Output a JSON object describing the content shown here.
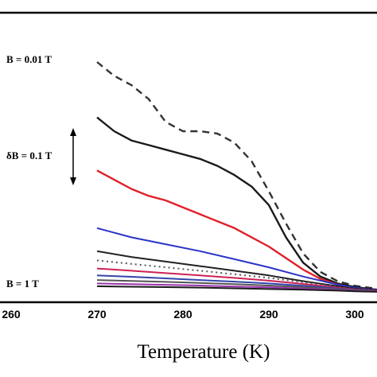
{
  "chart_data": {
    "type": "line",
    "xlabel": "Temperature (K)",
    "x_ticks": [
      "260",
      "270",
      "280",
      "290",
      "300"
    ],
    "tick_values": [
      260,
      270,
      280,
      290,
      300
    ],
    "xlim": [
      260,
      306
    ],
    "ylim": [
      0,
      1
    ],
    "grid": false,
    "annotations": {
      "top_label": "B = 0.01 T",
      "step_label": "δB = 0.1 T",
      "bottom_label": "B = 1 T"
    },
    "series": [
      {
        "color": "#333333",
        "dash": "dashed",
        "x": [
          270,
          272,
          274,
          276,
          278,
          280,
          282,
          284,
          286,
          288,
          290,
          292,
          294,
          296,
          298,
          300,
          302,
          304,
          306
        ],
        "y": [
          1.0,
          0.94,
          0.9,
          0.84,
          0.74,
          0.7,
          0.7,
          0.69,
          0.65,
          0.57,
          0.44,
          0.3,
          0.17,
          0.09,
          0.05,
          0.03,
          0.02,
          0.015,
          0.01
        ]
      },
      {
        "color": "#1a1a1a",
        "dash": "solid",
        "x": [
          270,
          272,
          274,
          276,
          278,
          280,
          282,
          284,
          286,
          288,
          290,
          292,
          294,
          296,
          298,
          300,
          302,
          304,
          306
        ],
        "y": [
          0.76,
          0.7,
          0.66,
          0.64,
          0.62,
          0.6,
          0.58,
          0.55,
          0.51,
          0.46,
          0.38,
          0.24,
          0.13,
          0.07,
          0.04,
          0.025,
          0.015,
          0.01,
          0.008
        ]
      },
      {
        "color": "#e0202a",
        "dash": "solid",
        "x": [
          270,
          272,
          274,
          276,
          278,
          280,
          282,
          284,
          286,
          288,
          290,
          292,
          294,
          296,
          298,
          300,
          302,
          304,
          306
        ],
        "y": [
          0.53,
          0.49,
          0.45,
          0.42,
          0.4,
          0.37,
          0.34,
          0.31,
          0.28,
          0.24,
          0.2,
          0.15,
          0.1,
          0.06,
          0.035,
          0.02,
          0.012,
          0.008,
          0.006
        ]
      },
      {
        "color": "#2a34c8",
        "dash": "solid",
        "x": [
          270,
          274,
          278,
          282,
          286,
          290,
          294,
          298,
          300,
          302,
          306
        ],
        "y": [
          0.28,
          0.24,
          0.21,
          0.18,
          0.145,
          0.11,
          0.07,
          0.035,
          0.022,
          0.013,
          0.006
        ]
      },
      {
        "color": "#222222",
        "dash": "solid",
        "x": [
          270,
          274,
          278,
          282,
          286,
          290,
          294,
          298,
          300,
          302,
          306
        ],
        "y": [
          0.18,
          0.155,
          0.135,
          0.115,
          0.095,
          0.075,
          0.05,
          0.028,
          0.018,
          0.011,
          0.005
        ]
      },
      {
        "color": "#555555",
        "dash": "dotted",
        "x": [
          270,
          274,
          278,
          282,
          286,
          290,
          294,
          298,
          300,
          302,
          306
        ],
        "y": [
          0.14,
          0.125,
          0.11,
          0.095,
          0.08,
          0.064,
          0.045,
          0.025,
          0.016,
          0.01,
          0.005
        ]
      },
      {
        "color": "#cc2255",
        "dash": "solid",
        "x": [
          270,
          274,
          278,
          282,
          286,
          290,
          294,
          298,
          300,
          302,
          306
        ],
        "y": [
          0.105,
          0.095,
          0.085,
          0.075,
          0.064,
          0.052,
          0.038,
          0.022,
          0.014,
          0.009,
          0.004
        ]
      },
      {
        "color": "#3344aa",
        "dash": "solid",
        "x": [
          270,
          274,
          278,
          282,
          286,
          290,
          294,
          298,
          300,
          302,
          306
        ],
        "y": [
          0.075,
          0.069,
          0.062,
          0.055,
          0.048,
          0.04,
          0.03,
          0.018,
          0.012,
          0.008,
          0.004
        ]
      },
      {
        "color": "#555555",
        "dash": "solid",
        "x": [
          270,
          274,
          278,
          282,
          286,
          290,
          294,
          298,
          300,
          302,
          306
        ],
        "y": [
          0.055,
          0.051,
          0.047,
          0.042,
          0.037,
          0.031,
          0.024,
          0.015,
          0.01,
          0.007,
          0.004
        ]
      },
      {
        "color": "#9933aa",
        "dash": "solid",
        "x": [
          270,
          274,
          278,
          282,
          286,
          290,
          294,
          298,
          300,
          302,
          306
        ],
        "y": [
          0.04,
          0.037,
          0.034,
          0.031,
          0.027,
          0.023,
          0.018,
          0.012,
          0.008,
          0.006,
          0.003
        ]
      },
      {
        "color": "#1a1a1a",
        "dash": "solid",
        "x": [
          270,
          274,
          278,
          282,
          286,
          290,
          294,
          298,
          300,
          302,
          306
        ],
        "y": [
          0.028,
          0.026,
          0.024,
          0.022,
          0.019,
          0.016,
          0.013,
          0.009,
          0.006,
          0.004,
          0.002
        ]
      }
    ]
  }
}
